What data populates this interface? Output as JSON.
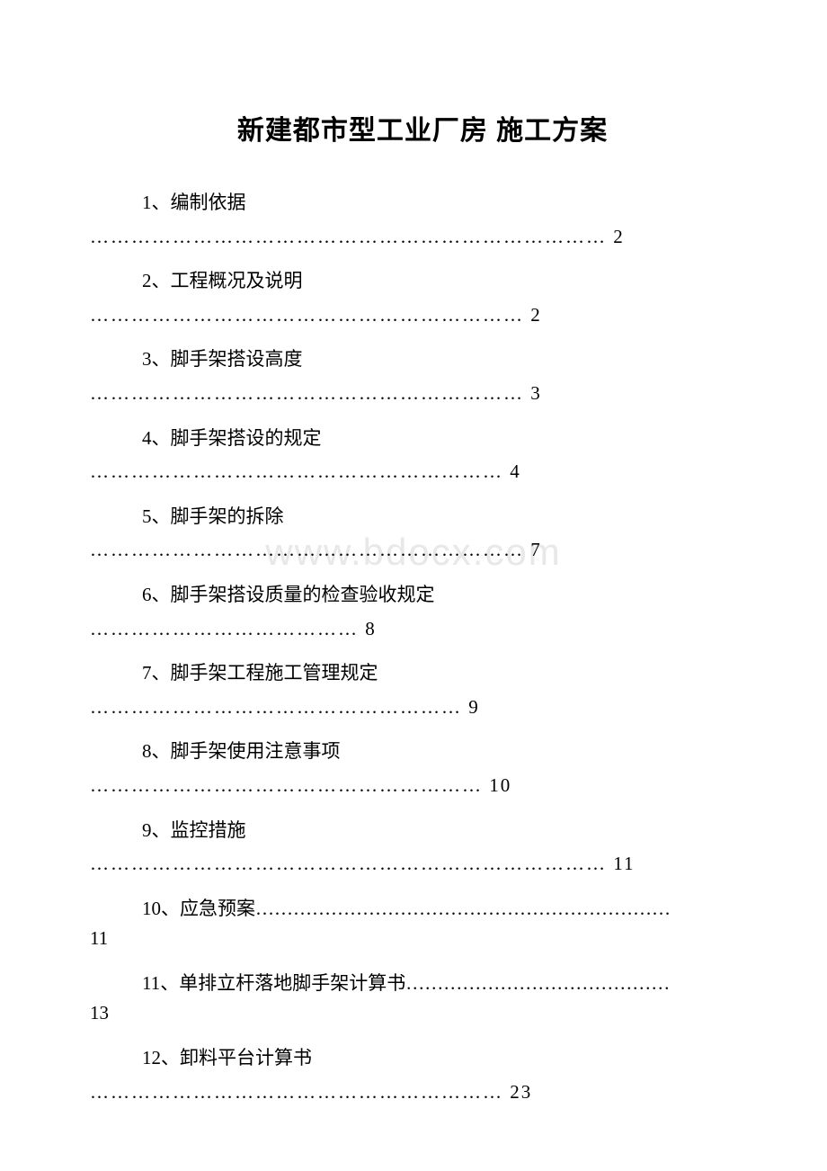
{
  "title": "新建都市型工业厂房 施工方案",
  "watermark": "www.bdocx.com",
  "toc": {
    "items": [
      {
        "num": "1",
        "label": "编制依据",
        "dots": "…………………………………………………………………",
        "page": "2",
        "style": "two-line"
      },
      {
        "num": "2",
        "label": "工程概况及说明",
        "dots": "………………………………………………………",
        "page": "2",
        "style": "two-line"
      },
      {
        "num": "3",
        "label": "脚手架搭设高度",
        "dots": "………………………………………………………",
        "page": "3",
        "style": "two-line"
      },
      {
        "num": "4",
        "label": "脚手架搭设的规定",
        "dots": "……………………………………………………",
        "page": "4",
        "style": "two-line"
      },
      {
        "num": "5",
        "label": "脚手架的拆除",
        "dots": "………………………………………………………",
        "page": "7",
        "style": "two-line"
      },
      {
        "num": "6",
        "label": "脚手架搭设质量的检查验收规定",
        "dots": "…………………………………",
        "page": "8",
        "style": "two-line"
      },
      {
        "num": "7",
        "label": "脚手架工程施工管理规定",
        "dots": "………………………………………………",
        "page": "9",
        "style": "two-line"
      },
      {
        "num": "8",
        "label": "脚手架使用注意事项",
        "dots": "…………………………………………………",
        "page": "10",
        "style": "two-line"
      },
      {
        "num": "9",
        "label": "监控措施",
        "dots": "…………………………………………………………………",
        "page": "11",
        "style": "two-line"
      },
      {
        "num": "10",
        "label": "应急预案",
        "dots": "…………………………………………………………",
        "page": "11",
        "style": "inline-wrap"
      },
      {
        "num": "11",
        "label": "单排立杆落地脚手架计算书",
        "dots": "……………………………………",
        "page": "13",
        "style": "inline-wrap"
      },
      {
        "num": "12",
        "label": "卸料平台计算书",
        "dots": "……………………………………………………",
        "page": "23",
        "style": "two-line"
      }
    ]
  },
  "colors": {
    "background": "#ffffff",
    "text": "#000000",
    "watermark": "#e8e8e8"
  },
  "typography": {
    "title_fontsize": 30,
    "body_fontsize": 21,
    "watermark_fontsize": 42
  }
}
